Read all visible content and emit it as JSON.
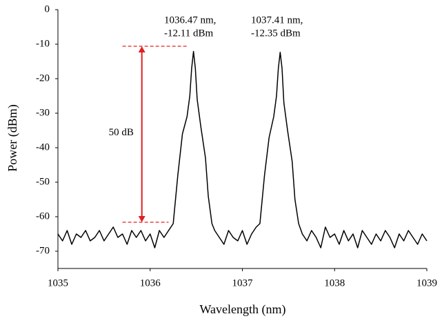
{
  "chart_data": {
    "type": "line",
    "xlabel": "Wavelength (nm)",
    "ylabel": "Power (dBm)",
    "x": [
      1035.0,
      1035.05,
      1035.1,
      1035.15,
      1035.2,
      1035.25,
      1035.3,
      1035.35,
      1035.4,
      1035.45,
      1035.5,
      1035.55,
      1035.6,
      1035.65,
      1035.7,
      1035.75,
      1035.8,
      1035.85,
      1035.9,
      1035.95,
      1036.0,
      1036.05,
      1036.1,
      1036.15,
      1036.2,
      1036.25,
      1036.3,
      1036.35,
      1036.4,
      1036.43,
      1036.45,
      1036.47,
      1036.49,
      1036.51,
      1036.55,
      1036.6,
      1036.63,
      1036.67,
      1036.7,
      1036.75,
      1036.8,
      1036.85,
      1036.9,
      1036.95,
      1037.0,
      1037.05,
      1037.1,
      1037.15,
      1037.19,
      1037.24,
      1037.29,
      1037.34,
      1037.37,
      1037.39,
      1037.41,
      1037.43,
      1037.45,
      1037.49,
      1037.54,
      1037.57,
      1037.61,
      1037.65,
      1037.7,
      1037.75,
      1037.8,
      1037.85,
      1037.9,
      1037.95,
      1038.0,
      1038.05,
      1038.1,
      1038.15,
      1038.2,
      1038.25,
      1038.3,
      1038.35,
      1038.4,
      1038.45,
      1038.5,
      1038.55,
      1038.6,
      1038.65,
      1038.7,
      1038.75,
      1038.8,
      1038.85,
      1038.9,
      1038.95,
      1039.0
    ],
    "values": [
      -65,
      -67,
      -64,
      -68,
      -65,
      -66,
      -64,
      -67,
      -66,
      -64,
      -67,
      -65,
      -63,
      -66,
      -65,
      -68,
      -64,
      -66,
      -64,
      -67,
      -65,
      -69,
      -64,
      -66,
      -64,
      -62,
      -48,
      -36,
      -31,
      -25,
      -17,
      -12.11,
      -17,
      -26,
      -34,
      -43,
      -54,
      -62,
      -64,
      -66,
      -68,
      -64,
      -66,
      -67,
      -64,
      -68,
      -65,
      -63,
      -62,
      -48,
      -37,
      -31,
      -25,
      -17,
      -12.35,
      -17,
      -27,
      -35,
      -44,
      -55,
      -62,
      -65,
      -67,
      -64,
      -66,
      -69,
      -63,
      -66,
      -65,
      -68,
      -64,
      -67,
      -65,
      -69,
      -64,
      -66,
      -68,
      -65,
      -67,
      -64,
      -66,
      -69,
      -65,
      -67,
      -64,
      -66,
      -68,
      -65,
      -67
    ],
    "color": "#000000",
    "xlim": [
      1035,
      1039
    ],
    "xticks": [
      1035,
      1036,
      1037,
      1038,
      1039
    ],
    "ylim": [
      -75,
      0
    ],
    "yticks": [
      0,
      -10,
      -20,
      -30,
      -40,
      -50,
      -60,
      -70
    ],
    "annotations": [
      [
        "1036.47 nm,",
        "-12.11 dBm"
      ],
      [
        "1037.41 nm,",
        "-12.35 dBm"
      ]
    ],
    "arrow": {
      "label": "50 dB",
      "color": "#e02020",
      "x": 1035.91,
      "top": -10.6,
      "bottom": -61.6,
      "dash_top": [
        1035.7,
        1036.41
      ],
      "dash_bottom": [
        1035.7,
        1036.2
      ]
    }
  }
}
